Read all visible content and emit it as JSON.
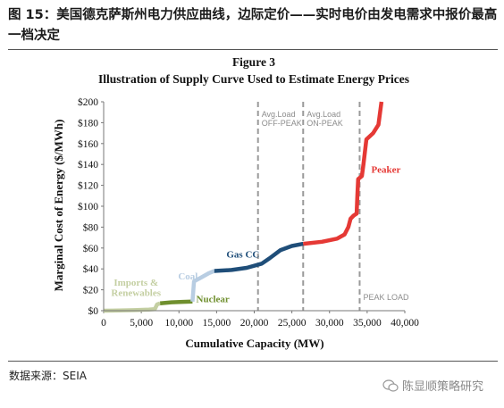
{
  "header": {
    "figure_caption": "图 15：美国德克萨斯州电力供应曲线，边际定价——实时电价由发电需求中报价最高一档决定"
  },
  "footer": {
    "source": "数据来源：SEIA",
    "watermark": "陈显顺策略研究"
  },
  "chart_data": {
    "type": "line",
    "figure_number": "Figure 3",
    "title": "Illustration of Supply Curve Used to Estimate Energy Prices",
    "xlabel": "Cumulative Capacity (MW)",
    "ylabel": "Marginal Cost of Energy ($/MWh)",
    "xlim": [
      0,
      40000
    ],
    "ylim": [
      0,
      200
    ],
    "x_ticks": [
      "0",
      "5,000",
      "10,000",
      "15,000",
      "20,000",
      "25,000",
      "30,000",
      "35,000",
      "40,000"
    ],
    "y_ticks": [
      "$0",
      "$20",
      "$40",
      "$60",
      "$80",
      "$100",
      "$120",
      "$140",
      "$160",
      "$180",
      "$200"
    ],
    "grid": false,
    "reference_lines": [
      {
        "x": 20500,
        "label": [
          "Avg.Load",
          "OFF-PEAK"
        ]
      },
      {
        "x": 26500,
        "label": [
          "Avg.Load",
          "ON-PEAK"
        ]
      },
      {
        "x": 34000,
        "label": [
          "PEAK LOAD"
        ]
      }
    ],
    "series": [
      {
        "name": "Imports & Renewables",
        "color": "#c4cfa2",
        "points": [
          [
            0,
            0
          ],
          [
            2000,
            0.2
          ],
          [
            4000,
            0.5
          ],
          [
            6000,
            1
          ],
          [
            6800,
            1.5
          ],
          [
            7100,
            6
          ],
          [
            7500,
            7
          ]
        ]
      },
      {
        "name": "Nuclear",
        "color": "#6f8f2e",
        "points": [
          [
            7500,
            7
          ],
          [
            9000,
            8
          ],
          [
            10500,
            8.5
          ],
          [
            11800,
            8.7
          ]
        ]
      },
      {
        "name": "Coal",
        "color": "#b8cde2",
        "points": [
          [
            11800,
            8.7
          ],
          [
            12000,
            28
          ],
          [
            13000,
            32
          ],
          [
            14000,
            36
          ],
          [
            14700,
            38
          ]
        ]
      },
      {
        "name": "Gas CC",
        "color": "#1f4e79",
        "points": [
          [
            14700,
            38
          ],
          [
            17000,
            39
          ],
          [
            19000,
            41
          ],
          [
            21000,
            45
          ],
          [
            22000,
            50
          ],
          [
            23500,
            58
          ],
          [
            25000,
            62
          ],
          [
            26500,
            64
          ]
        ]
      },
      {
        "name": "Peaker",
        "color": "#e53935",
        "points": [
          [
            26500,
            64
          ],
          [
            29000,
            66
          ],
          [
            31000,
            69
          ],
          [
            32000,
            73
          ],
          [
            32500,
            80
          ],
          [
            32800,
            88
          ],
          [
            33200,
            91
          ],
          [
            33600,
            93
          ],
          [
            33700,
            110
          ],
          [
            33800,
            126
          ],
          [
            34300,
            129
          ],
          [
            34500,
            140
          ],
          [
            34900,
            164
          ],
          [
            35800,
            170
          ],
          [
            36500,
            178
          ],
          [
            36900,
            200
          ]
        ]
      }
    ],
    "series_labels": [
      {
        "text": "Imports &",
        "x": 4300,
        "y": 24,
        "color": "#c4cfa2"
      },
      {
        "text": "Renewables",
        "x": 4300,
        "y": 14,
        "color": "#c4cfa2"
      },
      {
        "text": "Nuclear",
        "x": 14500,
        "y": 8,
        "color": "#6f8f2e"
      },
      {
        "text": "Coal",
        "x": 11200,
        "y": 30,
        "color": "#b8cde2"
      },
      {
        "text": "Gas CC",
        "x": 18500,
        "y": 51,
        "color": "#1f4e79"
      },
      {
        "text": "Peaker",
        "x": 37500,
        "y": 132,
        "color": "#e53935"
      }
    ]
  }
}
